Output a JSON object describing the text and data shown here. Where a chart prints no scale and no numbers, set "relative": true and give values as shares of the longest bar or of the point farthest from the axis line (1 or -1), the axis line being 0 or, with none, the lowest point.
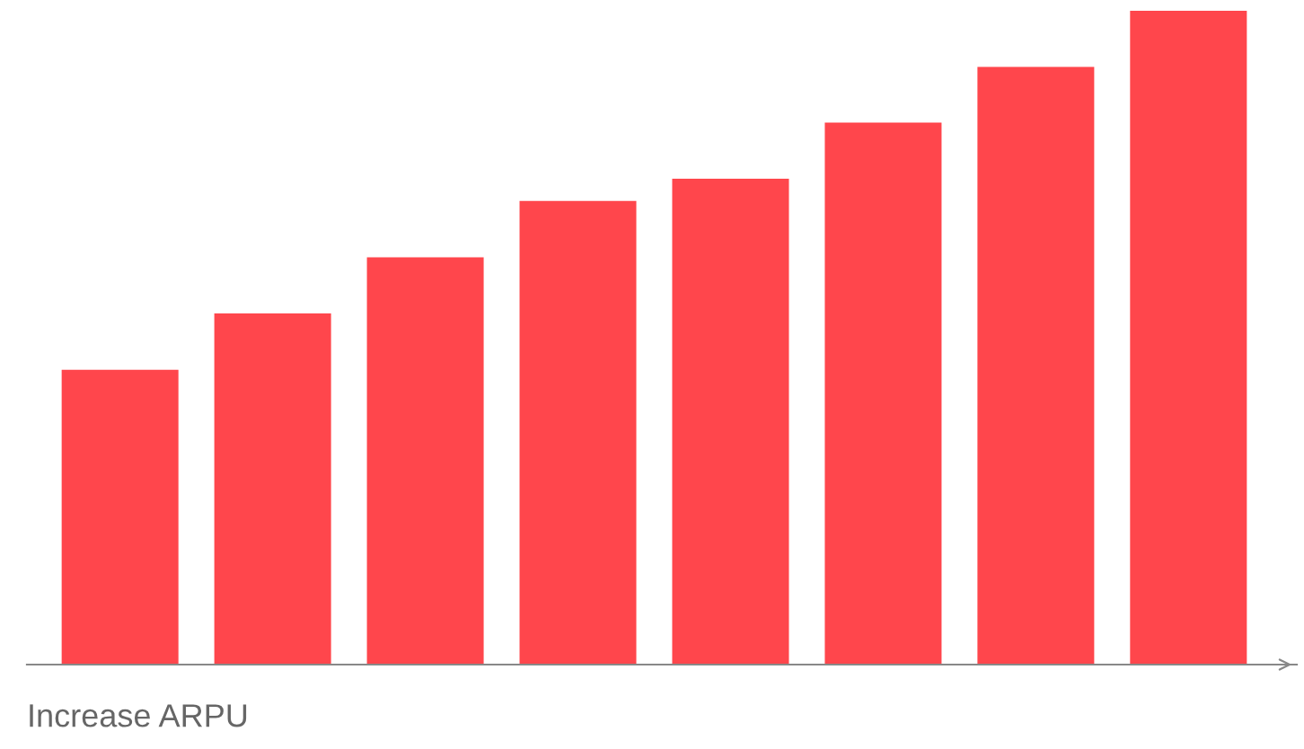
{
  "chart_data": {
    "type": "bar",
    "xlabel": "Increase ARPU",
    "relative": true,
    "categories": [
      null,
      null,
      null,
      null,
      null,
      null,
      null,
      null
    ],
    "values": [
      0.451,
      0.537,
      0.623,
      0.709,
      0.743,
      0.829,
      0.914,
      1
    ],
    "color": "#ff464c",
    "grid": false,
    "legend": false
  }
}
